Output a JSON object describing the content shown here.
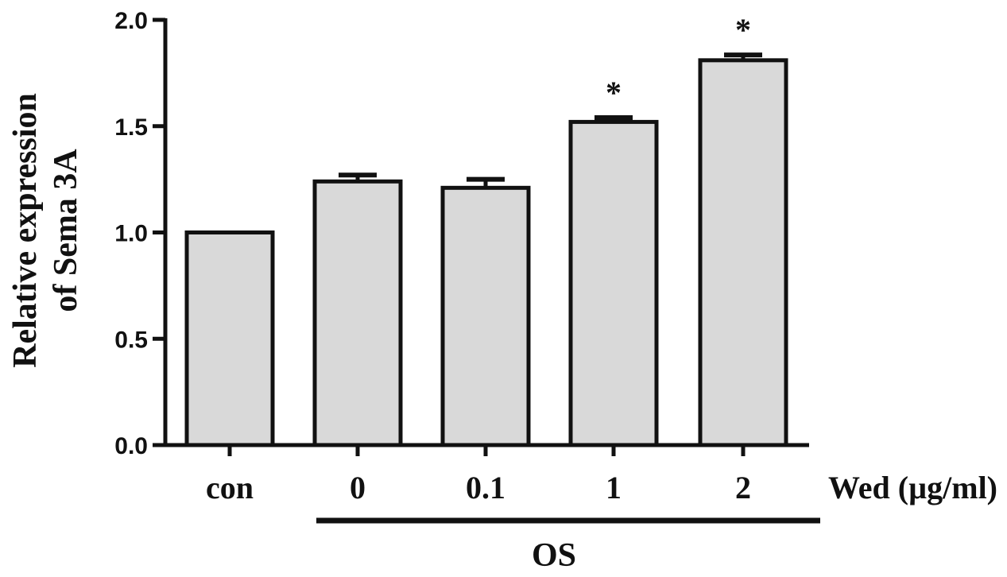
{
  "chart_data": {
    "type": "bar",
    "title": "",
    "ylabel_lines": [
      "Relative expression",
      "of Sema 3A"
    ],
    "xlabel": "",
    "categories": [
      "con",
      "0",
      "0.1",
      "1",
      "2"
    ],
    "values": [
      1.0,
      1.24,
      1.21,
      1.52,
      1.81
    ],
    "errors": [
      0.0,
      0.03,
      0.04,
      0.02,
      0.025
    ],
    "significance": [
      "",
      "",
      "",
      "*",
      "*"
    ],
    "ylim": [
      0,
      2.0
    ],
    "yticks": [
      "0.0",
      "0.5",
      "1.0",
      "1.5",
      "2.0"
    ],
    "unit_label": "Wed (µg/ml)",
    "group_label": "OS",
    "bar_color": "#d9d9d9",
    "edge_color": "#111111",
    "grid": false,
    "legend": "none"
  }
}
